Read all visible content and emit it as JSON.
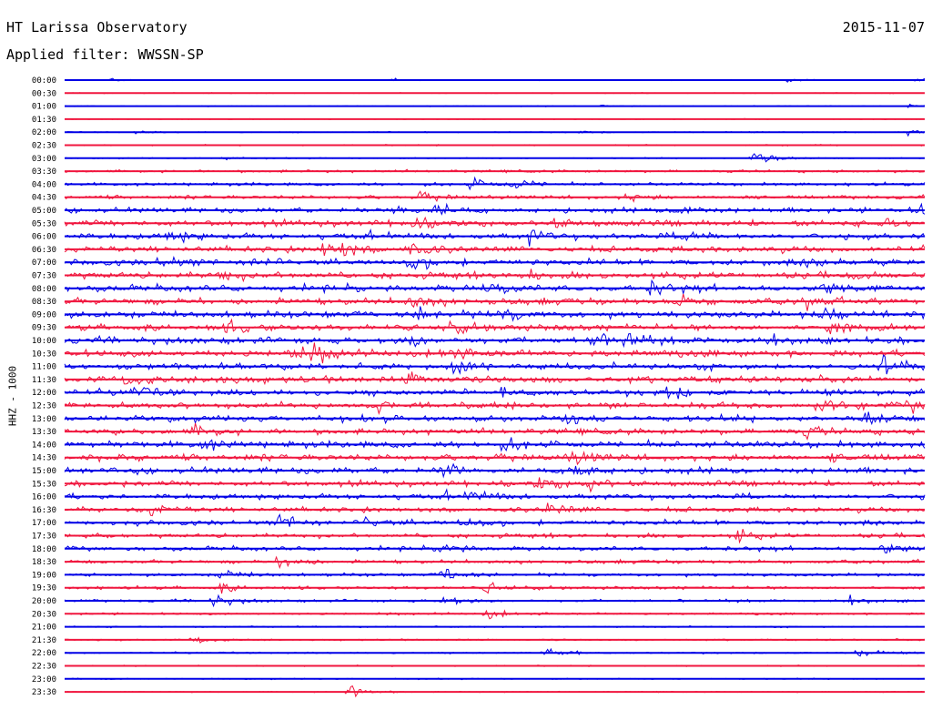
{
  "header": {
    "station": "HT Larissa Observatory",
    "date": "2015-11-07",
    "filter": "Applied filter: WWSSN-SP"
  },
  "channel_label": "HHZ - 1000",
  "colors": {
    "trace_a": "#0000e6",
    "trace_b": "#f0163e"
  },
  "chart_data": {
    "type": "line",
    "title": "HT Larissa Observatory",
    "subtitle": "Applied filter: WWSSN-SP",
    "xlabel": "",
    "ylabel": "HHZ - 1000",
    "grid": false,
    "legend": "none",
    "row_labels": [
      "00:00",
      "00:30",
      "01:00",
      "01:30",
      "02:00",
      "02:30",
      "03:00",
      "03:30",
      "04:00",
      "04:30",
      "05:00",
      "05:30",
      "06:00",
      "06:30",
      "07:00",
      "07:30",
      "08:00",
      "08:30",
      "09:00",
      "09:30",
      "10:00",
      "10:30",
      "11:00",
      "11:30",
      "12:00",
      "12:30",
      "13:00",
      "13:30",
      "14:00",
      "14:30",
      "15:00",
      "15:30",
      "16:00",
      "16:30",
      "17:00",
      "17:30",
      "18:00",
      "18:30",
      "19:00",
      "19:30",
      "20:00",
      "20:30",
      "21:00",
      "21:30",
      "22:00",
      "22:30",
      "23:00",
      "23:30"
    ],
    "row_noise_level": [
      0.08,
      0.08,
      0.08,
      0.07,
      0.1,
      0.12,
      0.1,
      0.25,
      0.3,
      0.35,
      0.45,
      0.55,
      0.55,
      0.55,
      0.55,
      0.6,
      0.6,
      0.6,
      0.6,
      0.6,
      0.6,
      0.6,
      0.6,
      0.6,
      0.55,
      0.55,
      0.55,
      0.55,
      0.6,
      0.6,
      0.55,
      0.5,
      0.5,
      0.45,
      0.45,
      0.4,
      0.4,
      0.35,
      0.3,
      0.3,
      0.25,
      0.2,
      0.15,
      0.15,
      0.15,
      0.12,
      0.1,
      0.1
    ],
    "events": [
      {
        "row": 0,
        "pos": 0.05,
        "amp": 0.3
      },
      {
        "row": 0,
        "pos": 0.38,
        "amp": 0.3
      },
      {
        "row": 0,
        "pos": 0.84,
        "amp": 0.3
      },
      {
        "row": 0,
        "pos": 0.99,
        "amp": 0.4
      },
      {
        "row": 2,
        "pos": 0.98,
        "amp": 0.4
      },
      {
        "row": 2,
        "pos": 0.62,
        "amp": 0.3
      },
      {
        "row": 4,
        "pos": 0.08,
        "amp": 0.3
      },
      {
        "row": 4,
        "pos": 0.6,
        "amp": 0.3
      },
      {
        "row": 4,
        "pos": 0.98,
        "amp": 0.5
      },
      {
        "row": 6,
        "pos": 0.8,
        "amp": 2.2
      },
      {
        "row": 6,
        "pos": 0.18,
        "amp": 0.4
      },
      {
        "row": 8,
        "pos": 0.47,
        "amp": 1.2
      },
      {
        "row": 8,
        "pos": 0.52,
        "amp": 1.4
      },
      {
        "row": 9,
        "pos": 0.41,
        "amp": 0.9
      },
      {
        "row": 9,
        "pos": 0.65,
        "amp": 1.1
      },
      {
        "row": 9,
        "pos": 0.78,
        "amp": 0.8
      },
      {
        "row": 10,
        "pos": 0.38,
        "amp": 1.6
      },
      {
        "row": 10,
        "pos": 0.43,
        "amp": 1.4
      },
      {
        "row": 10,
        "pos": 0.71,
        "amp": 1.2
      },
      {
        "row": 10,
        "pos": 0.99,
        "amp": 1.3
      },
      {
        "row": 11,
        "pos": 0.4,
        "amp": 1.5
      },
      {
        "row": 11,
        "pos": 0.56,
        "amp": 1.3
      },
      {
        "row": 11,
        "pos": 0.95,
        "amp": 1.0
      },
      {
        "row": 12,
        "pos": 0.12,
        "amp": 1.2
      },
      {
        "row": 12,
        "pos": 0.35,
        "amp": 1.4
      },
      {
        "row": 12,
        "pos": 0.54,
        "amp": 1.3
      },
      {
        "row": 12,
        "pos": 0.72,
        "amp": 1.2
      },
      {
        "row": 13,
        "pos": 0.3,
        "amp": 1.4
      },
      {
        "row": 13,
        "pos": 0.32,
        "amp": 1.2
      },
      {
        "row": 13,
        "pos": 0.4,
        "amp": 1.6
      },
      {
        "row": 14,
        "pos": 0.11,
        "amp": 1.2
      },
      {
        "row": 14,
        "pos": 0.22,
        "amp": 1.3
      },
      {
        "row": 14,
        "pos": 0.4,
        "amp": 1.5
      },
      {
        "row": 14,
        "pos": 0.86,
        "amp": 1.1
      },
      {
        "row": 15,
        "pos": 0.53,
        "amp": 1.2
      },
      {
        "row": 15,
        "pos": 0.18,
        "amp": 0.9
      },
      {
        "row": 16,
        "pos": 0.49,
        "amp": 1.3
      },
      {
        "row": 16,
        "pos": 0.68,
        "amp": 1.2
      },
      {
        "row": 16,
        "pos": 0.88,
        "amp": 1.2
      },
      {
        "row": 17,
        "pos": 0.4,
        "amp": 1.4
      },
      {
        "row": 17,
        "pos": 0.71,
        "amp": 1.3
      },
      {
        "row": 17,
        "pos": 0.86,
        "amp": 1.4
      },
      {
        "row": 18,
        "pos": 0.41,
        "amp": 1.5
      },
      {
        "row": 18,
        "pos": 0.5,
        "amp": 1.6
      },
      {
        "row": 18,
        "pos": 0.88,
        "amp": 1.3
      },
      {
        "row": 19,
        "pos": 0.19,
        "amp": 1.3
      },
      {
        "row": 19,
        "pos": 0.44,
        "amp": 1.4
      },
      {
        "row": 19,
        "pos": 0.89,
        "amp": 1.3
      },
      {
        "row": 20,
        "pos": 0.4,
        "amp": 1.2
      },
      {
        "row": 20,
        "pos": 0.61,
        "amp": 1.7
      },
      {
        "row": 20,
        "pos": 0.65,
        "amp": 1.3
      },
      {
        "row": 20,
        "pos": 0.82,
        "amp": 1.0
      },
      {
        "row": 21,
        "pos": 0.26,
        "amp": 1.4
      },
      {
        "row": 21,
        "pos": 0.29,
        "amp": 1.3
      },
      {
        "row": 21,
        "pos": 0.44,
        "amp": 1.4
      },
      {
        "row": 22,
        "pos": 0.45,
        "amp": 1.6
      },
      {
        "row": 22,
        "pos": 0.95,
        "amp": 1.5
      },
      {
        "row": 23,
        "pos": 0.07,
        "amp": 1.4
      },
      {
        "row": 23,
        "pos": 0.4,
        "amp": 1.5
      },
      {
        "row": 23,
        "pos": 0.17,
        "amp": 1.1
      },
      {
        "row": 24,
        "pos": 0.08,
        "amp": 1.1
      },
      {
        "row": 24,
        "pos": 0.51,
        "amp": 1.2
      },
      {
        "row": 24,
        "pos": 0.7,
        "amp": 1.6
      },
      {
        "row": 25,
        "pos": 0.36,
        "amp": 1.2
      },
      {
        "row": 25,
        "pos": 0.87,
        "amp": 1.3
      },
      {
        "row": 25,
        "pos": 0.98,
        "amp": 1.2
      },
      {
        "row": 26,
        "pos": 0.58,
        "amp": 1.3
      },
      {
        "row": 26,
        "pos": 0.93,
        "amp": 1.4
      },
      {
        "row": 27,
        "pos": 0.15,
        "amp": 1.4
      },
      {
        "row": 27,
        "pos": 0.86,
        "amp": 1.3
      },
      {
        "row": 28,
        "pos": 0.16,
        "amp": 1.1
      },
      {
        "row": 28,
        "pos": 0.51,
        "amp": 1.3
      },
      {
        "row": 29,
        "pos": 0.59,
        "amp": 1.4
      },
      {
        "row": 29,
        "pos": 0.89,
        "amp": 1.2
      },
      {
        "row": 30,
        "pos": 0.44,
        "amp": 1.8
      },
      {
        "row": 30,
        "pos": 0.59,
        "amp": 1.6
      },
      {
        "row": 31,
        "pos": 0.55,
        "amp": 1.3
      },
      {
        "row": 31,
        "pos": 0.61,
        "amp": 1.4
      },
      {
        "row": 32,
        "pos": 0.44,
        "amp": 1.6
      },
      {
        "row": 32,
        "pos": 0.47,
        "amp": 1.3
      },
      {
        "row": 33,
        "pos": 0.56,
        "amp": 1.4
      },
      {
        "row": 33,
        "pos": 0.1,
        "amp": 1.0
      },
      {
        "row": 34,
        "pos": 0.25,
        "amp": 1.8
      },
      {
        "row": 34,
        "pos": 0.35,
        "amp": 1.3
      },
      {
        "row": 34,
        "pos": 0.46,
        "amp": 1.2
      },
      {
        "row": 35,
        "pos": 0.78,
        "amp": 1.2
      },
      {
        "row": 36,
        "pos": 0.44,
        "amp": 1.3
      },
      {
        "row": 36,
        "pos": 0.95,
        "amp": 1.2
      },
      {
        "row": 37,
        "pos": 0.25,
        "amp": 1.6
      },
      {
        "row": 38,
        "pos": 0.44,
        "amp": 1.8
      },
      {
        "row": 38,
        "pos": 0.18,
        "amp": 1.2
      },
      {
        "row": 39,
        "pos": 0.49,
        "amp": 1.3
      },
      {
        "row": 39,
        "pos": 0.18,
        "amp": 1.0
      },
      {
        "row": 40,
        "pos": 0.17,
        "amp": 1.6
      },
      {
        "row": 40,
        "pos": 0.44,
        "amp": 1.3
      },
      {
        "row": 40,
        "pos": 0.91,
        "amp": 1.1
      },
      {
        "row": 41,
        "pos": 0.49,
        "amp": 1.1
      },
      {
        "row": 43,
        "pos": 0.15,
        "amp": 0.8
      },
      {
        "row": 44,
        "pos": 0.56,
        "amp": 1.3
      },
      {
        "row": 44,
        "pos": 0.92,
        "amp": 1.3
      },
      {
        "row": 47,
        "pos": 0.33,
        "amp": 1.9
      }
    ]
  }
}
